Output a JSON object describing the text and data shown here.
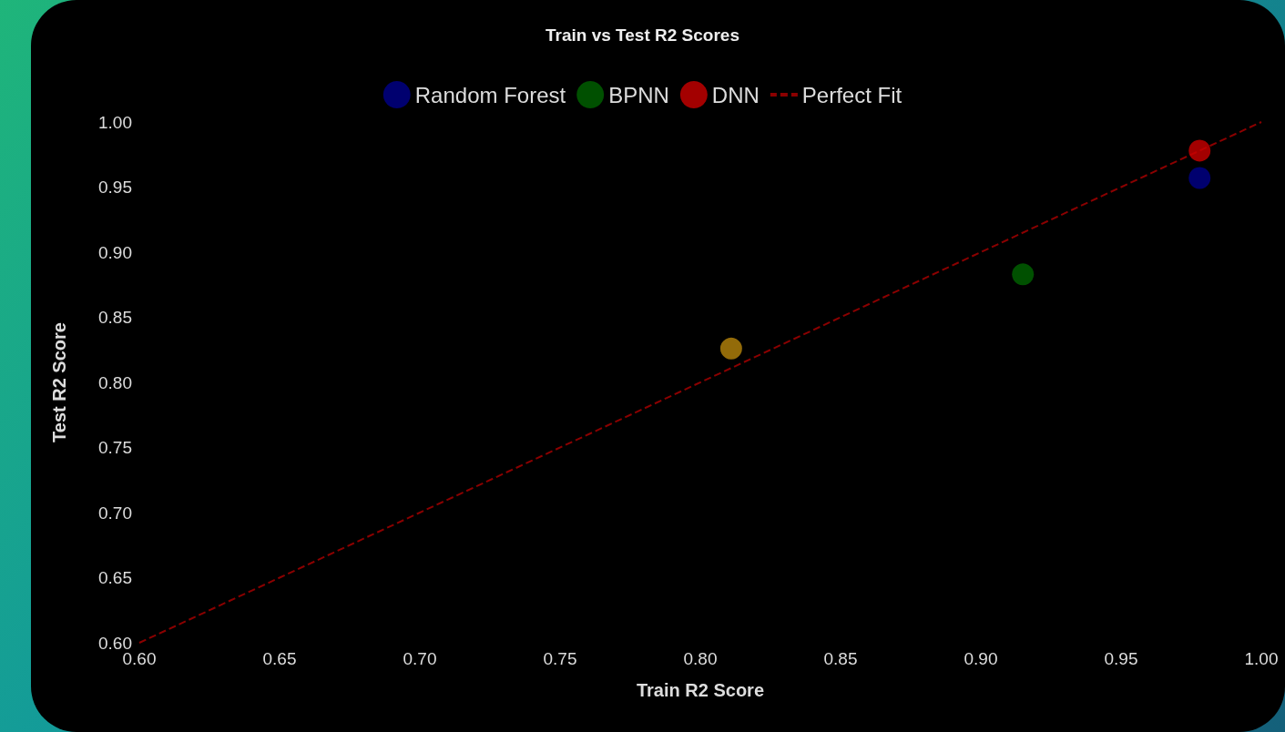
{
  "chart_data": {
    "type": "scatter",
    "title": "Train vs Test R2 Scores",
    "xlabel": "Train R2 Score",
    "ylabel": "Test R2 Score",
    "xlim": [
      0.6,
      1.0
    ],
    "xticks": [
      {
        "value": 0.6,
        "label": "0.60"
      },
      0.65,
      {
        "value": 0.7,
        "label": "0.70"
      },
      0.75,
      {
        "value": 0.8,
        "label": "0.80"
      },
      0.85,
      {
        "value": 0.9,
        "label": "0.90"
      },
      0.95,
      {
        "value": 1.0,
        "label": "1.00"
      }
    ],
    "ylim": [
      0.6,
      1.0
    ],
    "yticks": [
      {
        "value": 0.6,
        "label": "0.60"
      },
      0.65,
      {
        "value": 0.7,
        "label": "0.70"
      },
      0.75,
      {
        "value": 0.8,
        "label": "0.80"
      },
      0.85,
      {
        "value": 0.9,
        "label": "0.90"
      },
      0.95,
      {
        "value": 1.0,
        "label": "1.00"
      }
    ],
    "grid": false,
    "legend": "top",
    "marker": "circle",
    "series": [
      {
        "name": "Random Forest",
        "color": "#00008b",
        "x": [
          0.978
        ],
        "values": [
          0.957
        ]
      },
      {
        "color": "#b8860b",
        "x": [
          0.811
        ],
        "values": [
          0.826
        ]
      },
      {
        "name": "BPNN",
        "color": "#006400",
        "x": [
          0.915
        ],
        "values": [
          0.883
        ]
      },
      {
        "name": "DNN",
        "color": "#cc0000",
        "x": [
          0.978
        ],
        "values": [
          0.978
        ]
      },
      {
        "name": "Perfect Fit",
        "type": "line",
        "color": "#8b0000",
        "line_style": "dashed",
        "marker": "none",
        "x": [
          0.6,
          1.0
        ],
        "values": [
          0.6,
          1.0
        ]
      }
    ]
  }
}
